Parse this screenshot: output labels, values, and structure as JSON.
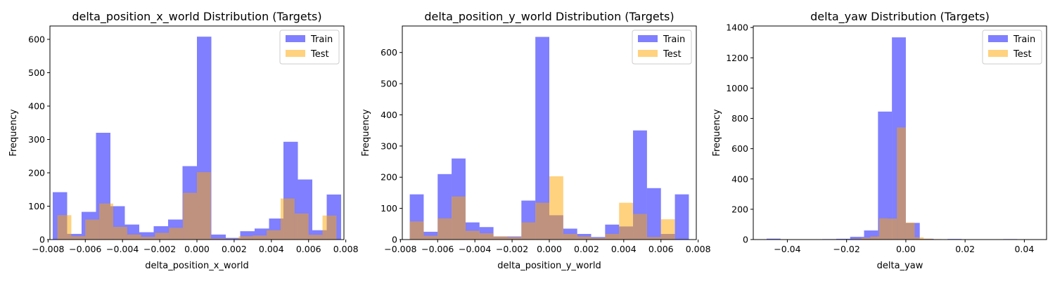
{
  "chart_data": [
    {
      "type": "bar",
      "title": "delta_position_x_world Distribution (Targets)",
      "xlabel": "delta_position_x_world",
      "ylabel": "Frequency",
      "xlim": [
        -0.0079,
        0.0079
      ],
      "ylim": [
        0,
        640
      ],
      "xticks": [
        -0.008,
        -0.006,
        -0.004,
        -0.002,
        0.0,
        0.002,
        0.004,
        0.006,
        0.008
      ],
      "xtick_labels": [
        "−0.008",
        "−0.006",
        "−0.004",
        "−0.002",
        "0.000",
        "0.002",
        "0.004",
        "0.006",
        "0.008"
      ],
      "yticks": [
        0,
        100,
        200,
        300,
        400,
        500,
        600
      ],
      "ytick_labels": [
        "0",
        "100",
        "200",
        "300",
        "400",
        "500",
        "600"
      ],
      "legend": "top-right",
      "grid": false,
      "series": [
        {
          "name": "Train",
          "color": "#0000ff",
          "alpha": 0.5,
          "bin_start": -0.00775,
          "bin_width": 0.000775,
          "values": [
            142,
            17,
            83,
            320,
            100,
            45,
            22,
            40,
            60,
            220,
            608,
            15,
            5,
            25,
            33,
            63,
            293,
            180,
            28,
            135
          ]
        },
        {
          "name": "Test",
          "color": "#ffa500",
          "alpha": 0.5,
          "bin_start": -0.0075,
          "bin_width": 0.00075,
          "values": [
            73,
            10,
            60,
            108,
            38,
            15,
            8,
            20,
            35,
            140,
            202,
            3,
            2,
            10,
            12,
            28,
            123,
            78,
            14,
            72
          ]
        }
      ]
    },
    {
      "type": "bar",
      "title": "delta_position_y_world Distribution (Targets)",
      "xlabel": "delta_position_y_world",
      "ylabel": "Frequency",
      "xlim": [
        -0.0079,
        0.0079
      ],
      "ylim": [
        0,
        685
      ],
      "xticks": [
        -0.008,
        -0.006,
        -0.004,
        -0.002,
        0.0,
        0.002,
        0.004,
        0.006,
        0.008
      ],
      "xtick_labels": [
        "−0.008",
        "−0.006",
        "−0.004",
        "−0.002",
        "0.000",
        "0.002",
        "0.004",
        "0.006",
        "0.008"
      ],
      "yticks": [
        0,
        100,
        200,
        300,
        400,
        500,
        600
      ],
      "ytick_labels": [
        "0",
        "100",
        "200",
        "300",
        "400",
        "500",
        "600"
      ],
      "legend": "top-right",
      "grid": false,
      "series": [
        {
          "name": "Train",
          "color": "#0000ff",
          "alpha": 0.5,
          "bin_start": -0.0075,
          "bin_width": 0.00075,
          "values": [
            145,
            25,
            210,
            260,
            55,
            40,
            10,
            10,
            125,
            650,
            78,
            35,
            18,
            8,
            48,
            42,
            350,
            165,
            18,
            145
          ]
        },
        {
          "name": "Test",
          "color": "#ffa500",
          "alpha": 0.5,
          "bin_start": -0.0075,
          "bin_width": 0.00075,
          "values": [
            58,
            12,
            68,
            138,
            28,
            20,
            10,
            8,
            55,
            118,
            203,
            18,
            10,
            5,
            18,
            118,
            82,
            8,
            65,
            0
          ]
        }
      ]
    },
    {
      "type": "bar",
      "title": "delta_yaw Distribution (Targets)",
      "xlabel": "delta_yaw",
      "ylabel": "Frequency",
      "xlim": [
        -0.0515,
        0.0475
      ],
      "ylim": [
        0,
        1410
      ],
      "xticks": [
        -0.04,
        -0.02,
        0.0,
        0.02,
        0.04
      ],
      "xtick_labels": [
        "−0.04",
        "−0.02",
        "0.00",
        "0.02",
        "0.04"
      ],
      "yticks": [
        0,
        200,
        400,
        600,
        800,
        1000,
        1200,
        1400
      ],
      "ytick_labels": [
        "0",
        "200",
        "400",
        "600",
        "800",
        "1000",
        "1200",
        "1400"
      ],
      "legend": "top-right",
      "grid": false,
      "series": [
        {
          "name": "Train",
          "color": "#0000ff",
          "alpha": 0.5,
          "bin_start": -0.047,
          "bin_width": 0.0047,
          "values": [
            6,
            2,
            1,
            2,
            3,
            5,
            18,
            60,
            845,
            1335,
            110,
            5,
            2,
            4,
            2,
            1,
            1,
            3,
            2,
            1
          ]
        },
        {
          "name": "Test",
          "color": "#ffa500",
          "alpha": 0.5,
          "bin_start": -0.03,
          "bin_width": 0.003,
          "values": [
            1,
            1,
            2,
            2,
            5,
            12,
            20,
            140,
            138,
            740,
            112,
            15,
            6,
            3,
            2,
            1,
            1,
            1,
            1,
            1
          ]
        }
      ]
    }
  ]
}
